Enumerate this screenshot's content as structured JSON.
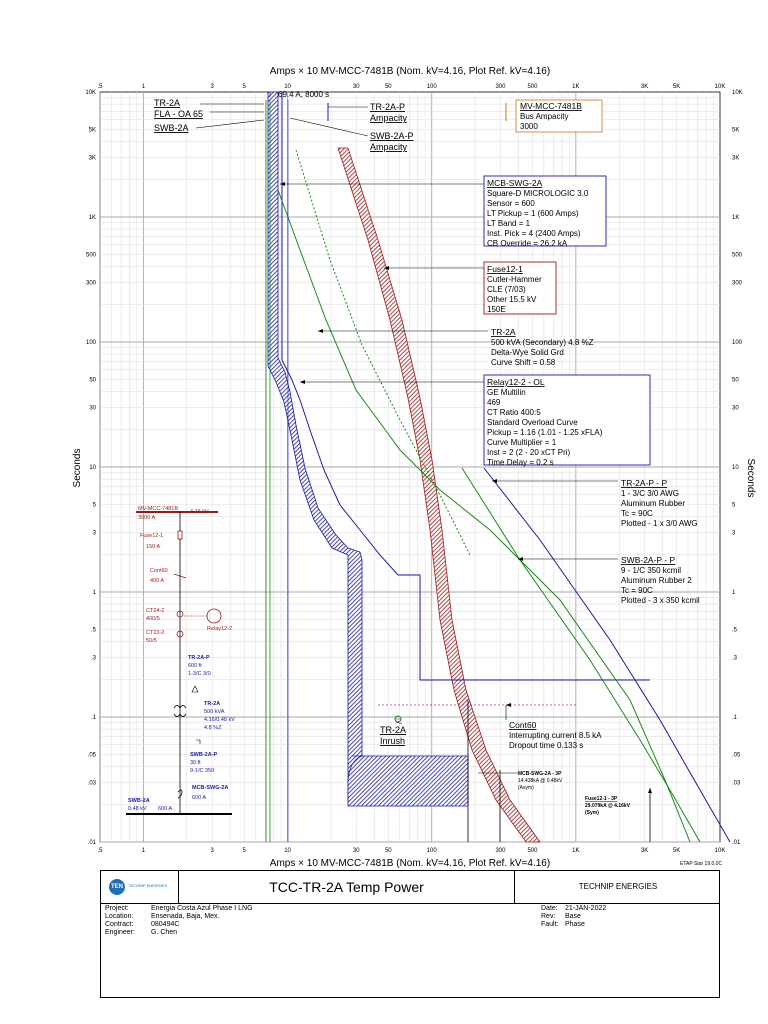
{
  "chart_data": {
    "type": "line",
    "title_top": "Amps × 10  MV-MCC-7481B (Nom. kV=4.16, Plot Ref. kV=4.16)",
    "title_bottom": "Amps × 10  MV-MCC-7481B (Nom. kV=4.16, Plot Ref. kV=4.16)",
    "ylabel": "Seconds",
    "ylabel_right": "Seconds",
    "xscale": "log",
    "yscale": "log",
    "xlim": [
      0.5,
      10000
    ],
    "ylim": [
      0.01,
      10000
    ],
    "x_ticks": [
      {
        "v": 0.5,
        "label": ".5"
      },
      {
        "v": 1,
        "label": "1"
      },
      {
        "v": 3,
        "label": "3"
      },
      {
        "v": 5,
        "label": "5"
      },
      {
        "v": 10,
        "label": "10"
      },
      {
        "v": 30,
        "label": "30"
      },
      {
        "v": 50,
        "label": "50"
      },
      {
        "v": 100,
        "label": "100"
      },
      {
        "v": 300,
        "label": "300"
      },
      {
        "v": 500,
        "label": "500"
      },
      {
        "v": 1000,
        "label": "1K"
      },
      {
        "v": 3000,
        "label": "3K"
      },
      {
        "v": 5000,
        "label": "5K"
      },
      {
        "v": 10000,
        "label": "10K"
      }
    ],
    "y_ticks": [
      {
        "v": 10000,
        "label": "10K"
      },
      {
        "v": 5000,
        "label": "5K"
      },
      {
        "v": 3000,
        "label": "3K"
      },
      {
        "v": 1000,
        "label": "1K"
      },
      {
        "v": 500,
        "label": "500"
      },
      {
        "v": 300,
        "label": "300"
      },
      {
        "v": 100,
        "label": "100"
      },
      {
        "v": 50,
        "label": "50"
      },
      {
        "v": 30,
        "label": "30"
      },
      {
        "v": 10,
        "label": "10"
      },
      {
        "v": 5,
        "label": "5"
      },
      {
        "v": 3,
        "label": "3"
      },
      {
        "v": 1,
        "label": "1"
      },
      {
        "v": 0.5,
        "label": ".5"
      },
      {
        "v": 0.3,
        "label": ".3"
      },
      {
        "v": 0.1,
        "label": ".1"
      },
      {
        "v": 0.05,
        "label": ".05"
      },
      {
        "v": 0.03,
        "label": ".03"
      },
      {
        "v": 0.01,
        "label": ".01"
      }
    ],
    "colors": {
      "blue": "#1a1aa6",
      "green": "#1a8a1a",
      "red": "#9a1a1a",
      "magenta": "#b03090",
      "orange": "#c8781e",
      "grid": "#c8c8c8"
    },
    "series": [
      {
        "name": "MCB-SWG-2A",
        "color": "#1a1aa6",
        "points": [
          [
            8,
            10000
          ],
          [
            8,
            100
          ],
          [
            10,
            40
          ],
          [
            11,
            30
          ],
          [
            12,
            12
          ],
          [
            14,
            6
          ],
          [
            18,
            3
          ],
          [
            25,
            1.5
          ],
          [
            40,
            1.4
          ],
          [
            40,
            0.3
          ],
          [
            1800,
            0.3
          ]
        ]
      },
      {
        "name": "TR-2A",
        "color": "#1a8a1a",
        "points": [
          [
            9,
            1500
          ],
          [
            14,
            300
          ],
          [
            25,
            80
          ],
          [
            40,
            30
          ],
          [
            100,
            10
          ],
          [
            300,
            3
          ],
          [
            700,
            1
          ],
          [
            3000,
            0.1
          ],
          [
            8000,
            0.01
          ]
        ]
      },
      {
        "name": "TR-2A-P - P",
        "color": "#1a1aa6",
        "points": [
          [
            200,
            10
          ],
          [
            500,
            3
          ],
          [
            1200,
            1
          ],
          [
            5000,
            0.1
          ],
          [
            10000,
            0.01
          ]
        ]
      },
      {
        "name": "SWB-2A-P - P",
        "color": "#1a8a1a",
        "points": [
          [
            150,
            10
          ],
          [
            400,
            3
          ],
          [
            1000,
            1
          ],
          [
            4000,
            0.1
          ],
          [
            8500,
            0.01
          ]
        ]
      }
    ],
    "annotations": [
      {
        "text": "69.4 A, 8000 s"
      },
      {
        "text": "TR-2A"
      },
      {
        "text": "FLA - OA 65"
      },
      {
        "text": "SWB-2A"
      },
      {
        "text": "TR-2A-P"
      },
      {
        "text": "Ampacity"
      },
      {
        "text": "SWB-2A-P"
      },
      {
        "text": "Ampacity"
      },
      {
        "text": "MV-MCC-7481B"
      },
      {
        "text": "Bus Ampacity"
      },
      {
        "text": "3000"
      },
      {
        "text": "TR-2A"
      },
      {
        "text": "Inrush"
      },
      {
        "text": "MCB-SWG-2A - 3P"
      },
      {
        "text": "14.438kA @ 0.48kV"
      },
      {
        "text": "(Asym)"
      },
      {
        "text": "Fuse12-1 - 3P"
      },
      {
        "text": "29.079kA @ 4.16kV"
      },
      {
        "text": "(Sym)"
      }
    ],
    "callouts": [
      {
        "title": "MCB-SWG-2A",
        "lines": [
          "Square-D MICROLOGIC 3.0",
          "Sensor = 600",
          "LT Pickup = 1 (600 Amps)",
          "LT Band = 1",
          "Inst. Pick = 4 (2400 Amps)",
          "CB Override = 26.2 kA"
        ]
      },
      {
        "title": "Fuse12-1",
        "lines": [
          "Cutler-Hammer",
          "CLE (7/03)",
          "Other  15.5 kV",
          "150E"
        ]
      },
      {
        "title": "TR-2A",
        "lines": [
          "500 kVA (Secondary)  4.8 %Z",
          "Delta-Wye Solid Grd",
          "Curve Shift = 0.58"
        ]
      },
      {
        "title": "Relay12-2 - OL",
        "lines": [
          "GE Multilin",
          "469",
          "CT Ratio 400:5",
          "Standard Overload Curve",
          "Pickup = 1.16 (1.01 - 1.25  xFLA)",
          "Curve Multiplier = 1",
          "Inst = 2 (2 - 20  xCT Pri)",
          "Time Delay = 0.2 s"
        ]
      },
      {
        "title": "TR-2A-P - P",
        "lines": [
          "1 - 3/C 3/0 AWG",
          "Aluminum  Rubber",
          "Tc = 90C",
          "Plotted - 1 x 3/0 AWG"
        ]
      },
      {
        "title": "SWB-2A-P - P",
        "lines": [
          "9 - 1/C 350 kcmil",
          "Aluminum  Rubber 2",
          "Tc = 90C",
          "Plotted - 3 x 350 kcmil"
        ]
      },
      {
        "title": "Cont60",
        "lines": [
          "Interrupting current 8.5 kA",
          "Dropout time 0.133 s"
        ]
      }
    ]
  },
  "one_line": {
    "items": [
      {
        "text": "MV-MCC-7481B"
      },
      {
        "text": "4.16 kV"
      },
      {
        "text": "3000 A"
      },
      {
        "text": "Fuse12-1"
      },
      {
        "text": "150 A"
      },
      {
        "text": "Cont60"
      },
      {
        "text": "400 A"
      },
      {
        "text": "CT24-2"
      },
      {
        "text": "400/5"
      },
      {
        "text": "CT23-2"
      },
      {
        "text": "50/5"
      },
      {
        "text": "Relay12-2"
      },
      {
        "text": "TR-2A-P"
      },
      {
        "text": "600 ft"
      },
      {
        "text": "1-3/C 3/0"
      },
      {
        "text": "TR-2A"
      },
      {
        "text": "500 kVA"
      },
      {
        "text": "4.16/0.48 kV"
      },
      {
        "text": "4.8 %Z"
      },
      {
        "text": "SWB-2A-P"
      },
      {
        "text": "30 ft"
      },
      {
        "text": "9-1/C 350"
      },
      {
        "text": "MCB-SWG-2A"
      },
      {
        "text": "600 A"
      },
      {
        "text": "SWB-2A"
      },
      {
        "text": "0.48 kV"
      },
      {
        "text": "600 A"
      }
    ]
  },
  "title_block": {
    "logo_text": "TEN",
    "logo_sub": "TECHNIP ENERGIES",
    "title": "TCC-TR-2A Temp Power",
    "company": "TECHNIP ENERGIES",
    "project_label": "Project:",
    "project": "Energia Costa Azul Phase I LNG",
    "location_label": "Location:",
    "location": "Ensenada, Baja, Mex.",
    "contract_label": "Contract:",
    "contract": "080494C",
    "engineer_label": "Engineer:",
    "engineer": "G. Chen",
    "date_label": "Date:",
    "date": "21-JAN-2022",
    "rev_label": "Rev:",
    "rev": "Base",
    "fault_label": "Fault:",
    "fault": "Phase"
  },
  "footer": {
    "etap": "ETAP Star 19.0.0C"
  }
}
